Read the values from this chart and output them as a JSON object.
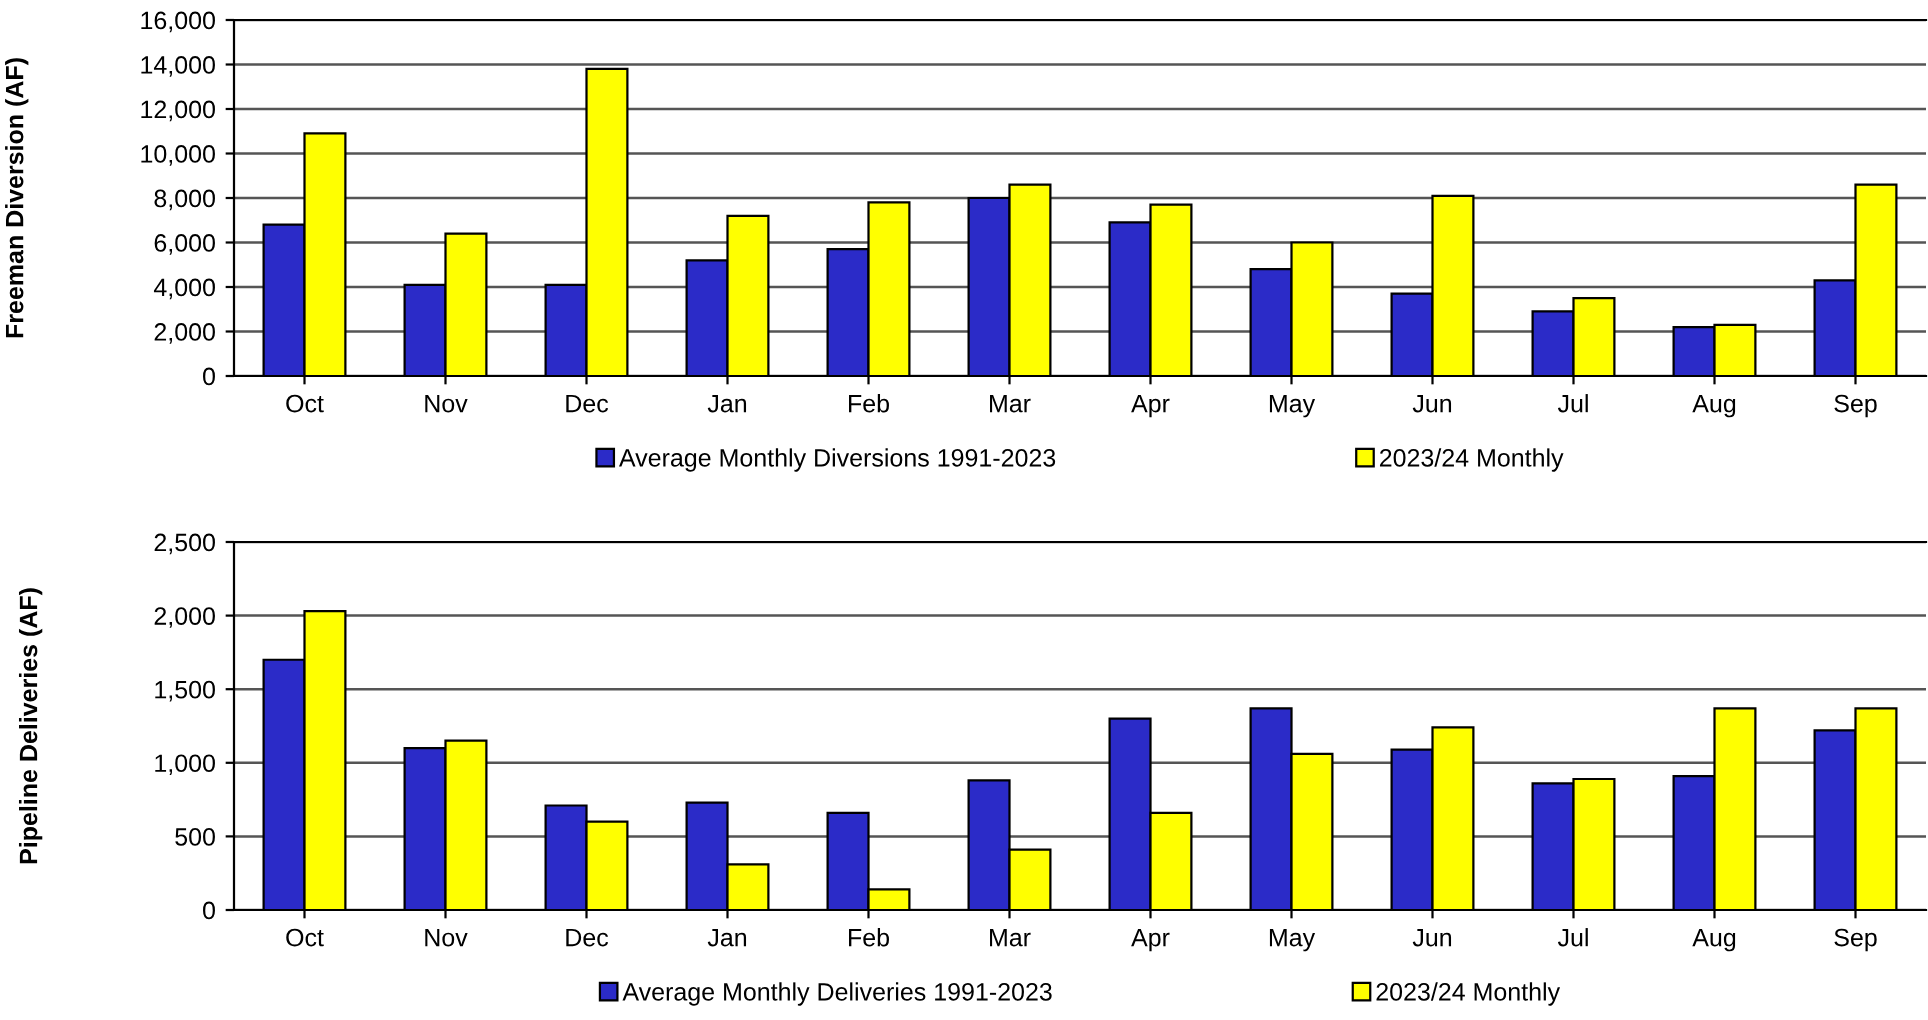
{
  "chart_data": [
    {
      "type": "bar",
      "ylabel": "Freeman Diversion (AF)",
      "categories": [
        "Oct",
        "Nov",
        "Dec",
        "Jan",
        "Feb",
        "Mar",
        "Apr",
        "May",
        "Jun",
        "Jul",
        "Aug",
        "Sep"
      ],
      "ylim": [
        0,
        16000
      ],
      "yticks": [
        {
          "value": 0,
          "label": "0"
        },
        {
          "value": 2000,
          "label": "2,000"
        },
        {
          "value": 4000,
          "label": "4,000"
        },
        {
          "value": 6000,
          "label": "6,000"
        },
        {
          "value": 8000,
          "label": "8,000"
        },
        {
          "value": 10000,
          "label": "10,000"
        },
        {
          "value": 12000,
          "label": "12,000"
        },
        {
          "value": 14000,
          "label": "14,000"
        },
        {
          "value": 16000,
          "label": "16,000"
        }
      ],
      "grid": "y",
      "legend": "bottom",
      "series": [
        {
          "name": "Average Monthly Diversions 1991-2023",
          "color": "#2b2bc8",
          "values": [
            6800,
            4100,
            4100,
            5200,
            5700,
            8000,
            6900,
            4800,
            3700,
            2900,
            2200,
            4300
          ]
        },
        {
          "name": "2023/24 Monthly",
          "color": "#ffff00",
          "values": [
            10900,
            6400,
            13800,
            7200,
            7800,
            8600,
            7700,
            6000,
            8100,
            3500,
            2300,
            8600
          ]
        }
      ]
    },
    {
      "type": "bar",
      "ylabel": "Pipeline Deliveries (AF)",
      "categories": [
        "Oct",
        "Nov",
        "Dec",
        "Jan",
        "Feb",
        "Mar",
        "Apr",
        "May",
        "Jun",
        "Jul",
        "Aug",
        "Sep"
      ],
      "ylim": [
        0,
        2500
      ],
      "yticks": [
        {
          "value": 0,
          "label": "0"
        },
        {
          "value": 500,
          "label": "500"
        },
        {
          "value": 1000,
          "label": "1,000"
        },
        {
          "value": 1500,
          "label": "1,500"
        },
        {
          "value": 2000,
          "label": "2,000"
        },
        {
          "value": 2500,
          "label": "2,500"
        }
      ],
      "grid": "y",
      "legend": "bottom",
      "series": [
        {
          "name": "Average Monthly Deliveries 1991-2023",
          "color": "#2b2bc8",
          "values": [
            1700,
            1100,
            710,
            730,
            660,
            880,
            1300,
            1370,
            1090,
            860,
            910,
            1220
          ]
        },
        {
          "name": "2023/24 Monthly",
          "color": "#ffff00",
          "values": [
            2030,
            1150,
            600,
            310,
            140,
            410,
            660,
            1060,
            1240,
            890,
            1370,
            1370
          ]
        }
      ]
    }
  ]
}
